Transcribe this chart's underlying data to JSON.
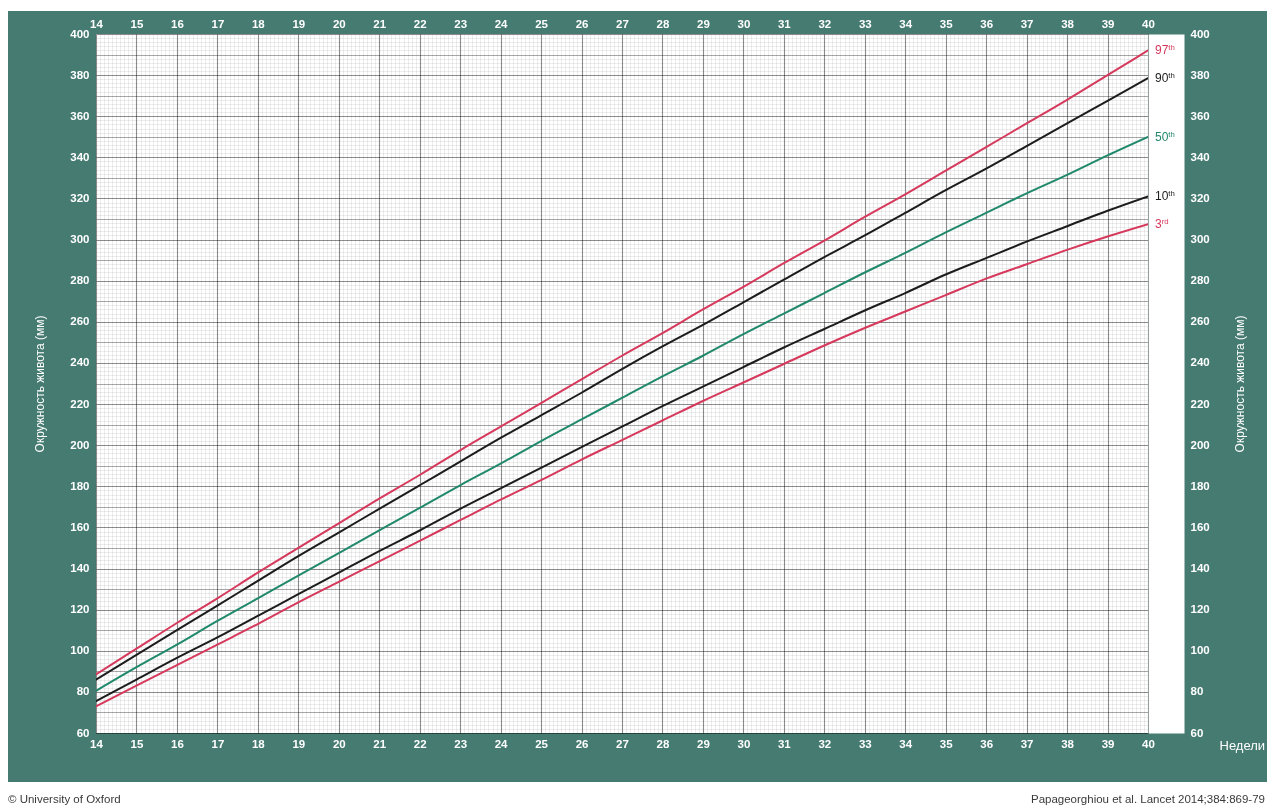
{
  "chart_data": {
    "type": "line",
    "xlabel": "Недели",
    "ylabel": "Окружность живота (мм)",
    "y2label": "Окружность живота (мм)",
    "x": [
      14,
      15,
      16,
      17,
      18,
      19,
      20,
      21,
      22,
      23,
      24,
      25,
      26,
      27,
      28,
      29,
      30,
      31,
      32,
      33,
      34,
      35,
      36,
      37,
      38,
      39,
      40
    ],
    "series": [
      {
        "name": "97$^{th}$",
        "color": "#d6395c",
        "values": [
          88.5,
          101,
          113.5,
          125.5,
          138,
          150,
          162,
          174,
          185.5,
          197.5,
          209,
          220.5,
          232,
          243.5,
          254.5,
          266,
          277,
          288.5,
          299.5,
          311,
          322,
          333.5,
          345,
          356.5,
          368,
          380,
          392
        ]
      },
      {
        "name": "90$^{th}$",
        "color": "#1c1c1c",
        "values": [
          86,
          98,
          110,
          122,
          134,
          146,
          157.5,
          169,
          180.5,
          192,
          203.5,
          214.5,
          225.5,
          237,
          248,
          258.5,
          269.5,
          280.5,
          291.5,
          302,
          313,
          324,
          334.5,
          345.5,
          356.5,
          367.5,
          378.5
        ]
      },
      {
        "name": "50$^{th}$",
        "color": "#21896b",
        "values": [
          80.5,
          92,
          103,
          114.5,
          125.5,
          136.5,
          147.5,
          158.5,
          169.5,
          180.5,
          191,
          202,
          212.5,
          223,
          233.5,
          243.5,
          254,
          264,
          274,
          284,
          293.5,
          303.5,
          313,
          322.5,
          331.5,
          341,
          350
        ]
      },
      {
        "name": "10$^{th}$",
        "color": "#1c1c1c",
        "values": [
          75.5,
          86,
          96.5,
          106.5,
          117,
          127.5,
          138,
          148.5,
          158.5,
          169,
          179,
          189,
          199,
          209,
          219,
          228.5,
          238,
          247.5,
          256.5,
          265.5,
          274,
          283,
          291,
          299,
          306.5,
          314,
          321
        ]
      },
      {
        "name": "3$^{rd}$",
        "color": "#d6395c",
        "values": [
          73,
          83,
          93,
          103,
          113,
          123.5,
          133.5,
          143.5,
          153.5,
          163.5,
          173.5,
          183,
          193,
          202.5,
          212,
          221.5,
          230.5,
          239.5,
          248.5,
          257,
          265,
          273,
          281,
          288,
          295,
          301.5,
          307.5
        ]
      }
    ],
    "xlim": [
      14,
      40
    ],
    "xticks": [
      14,
      15,
      16,
      17,
      18,
      19,
      20,
      21,
      22,
      23,
      24,
      25,
      26,
      27,
      28,
      29,
      30,
      31,
      32,
      33,
      34,
      35,
      36,
      37,
      38,
      39,
      40
    ],
    "x2lim": [
      14,
      40
    ],
    "x2ticks": [
      14,
      15,
      16,
      17,
      18,
      19,
      20,
      21,
      22,
      23,
      24,
      25,
      26,
      27,
      28,
      29,
      30,
      31,
      32,
      33,
      34,
      35,
      36,
      37,
      38,
      39,
      40
    ],
    "ylim": [
      60,
      400
    ],
    "yticks": [
      60,
      80,
      100,
      120,
      140,
      160,
      180,
      200,
      220,
      240,
      260,
      280,
      300,
      320,
      340,
      360,
      380,
      400
    ],
    "y2lim": [
      60,
      400
    ],
    "y2ticks": [
      60,
      80,
      100,
      120,
      140,
      160,
      180,
      200,
      220,
      240,
      260,
      280,
      300,
      320,
      340,
      360,
      380,
      400
    ],
    "grid": true,
    "line_style": "solid",
    "annotations": [
      "© University of Oxford",
      "Papageorghiou et al. Lancet 2014;384:869-79"
    ]
  }
}
